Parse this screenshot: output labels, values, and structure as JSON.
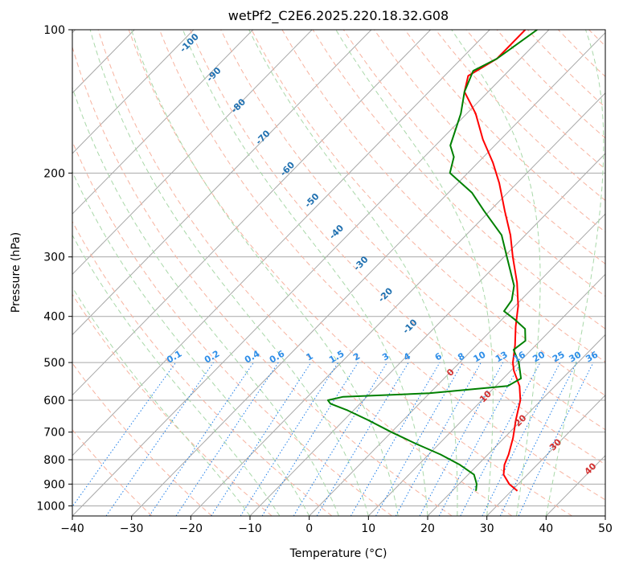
{
  "chart_data": {
    "type": "line",
    "title": "wetPf2_C2E6.2025.220.18.32.G08",
    "xlabel": "Temperature (°C)",
    "ylabel": "Pressure (hPa)",
    "xlim": [
      -40,
      50
    ],
    "ylim": [
      1050,
      100
    ],
    "yscale": "log",
    "skew": "skew-T log-p",
    "grid": true,
    "x_ticks": [
      -40,
      -30,
      -20,
      -10,
      0,
      10,
      20,
      30,
      40,
      50
    ],
    "y_ticks": [
      100,
      200,
      300,
      400,
      500,
      600,
      700,
      800,
      900,
      1000
    ],
    "series": [
      {
        "role": "temperature",
        "color": "#ff0000",
        "points": [
          {
            "p": 930,
            "t": 31
          },
          {
            "p": 900,
            "t": 28.5
          },
          {
            "p": 860,
            "t": 26
          },
          {
            "p": 820,
            "t": 24.5
          },
          {
            "p": 780,
            "t": 23.5
          },
          {
            "p": 720,
            "t": 21.5
          },
          {
            "p": 660,
            "t": 19
          },
          {
            "p": 600,
            "t": 16.5
          },
          {
            "p": 560,
            "t": 14
          },
          {
            "p": 520,
            "t": 10.5
          },
          {
            "p": 500,
            "t": 9
          },
          {
            "p": 460,
            "t": 6.5
          },
          {
            "p": 420,
            "t": 3.5
          },
          {
            "p": 380,
            "t": 0.5
          },
          {
            "p": 340,
            "t": -3.5
          },
          {
            "p": 300,
            "t": -8.5
          },
          {
            "p": 270,
            "t": -12.5
          },
          {
            "p": 240,
            "t": -17.5
          },
          {
            "p": 210,
            "t": -23
          },
          {
            "p": 190,
            "t": -27.5
          },
          {
            "p": 170,
            "t": -33
          },
          {
            "p": 150,
            "t": -38.5
          },
          {
            "p": 135,
            "t": -44
          },
          {
            "p": 125,
            "t": -46
          },
          {
            "p": 115,
            "t": -44
          },
          {
            "p": 100,
            "t": -44
          }
        ]
      },
      {
        "role": "dewpoint",
        "color": "#008000",
        "points": [
          {
            "p": 930,
            "t": 24
          },
          {
            "p": 900,
            "t": 23
          },
          {
            "p": 860,
            "t": 21
          },
          {
            "p": 820,
            "t": 17
          },
          {
            "p": 780,
            "t": 12
          },
          {
            "p": 740,
            "t": 6
          },
          {
            "p": 700,
            "t": 0
          },
          {
            "p": 660,
            "t": -6
          },
          {
            "p": 630,
            "t": -11
          },
          {
            "p": 610,
            "t": -15
          },
          {
            "p": 600,
            "t": -16
          },
          {
            "p": 590,
            "t": -14
          },
          {
            "p": 580,
            "t": 0
          },
          {
            "p": 560,
            "t": 12
          },
          {
            "p": 540,
            "t": 13
          },
          {
            "p": 500,
            "t": 10
          },
          {
            "p": 470,
            "t": 7
          },
          {
            "p": 450,
            "t": 7.5
          },
          {
            "p": 425,
            "t": 5.5
          },
          {
            "p": 405,
            "t": 2
          },
          {
            "p": 390,
            "t": -1
          },
          {
            "p": 370,
            "t": -1.5
          },
          {
            "p": 345,
            "t": -3.5
          },
          {
            "p": 300,
            "t": -9.5
          },
          {
            "p": 270,
            "t": -14
          },
          {
            "p": 240,
            "t": -21
          },
          {
            "p": 220,
            "t": -26
          },
          {
            "p": 200,
            "t": -33
          },
          {
            "p": 185,
            "t": -35
          },
          {
            "p": 175,
            "t": -37.5
          },
          {
            "p": 150,
            "t": -41
          },
          {
            "p": 135,
            "t": -44
          },
          {
            "p": 122,
            "t": -46
          },
          {
            "p": 115,
            "t": -44
          },
          {
            "p": 100,
            "t": -42
          }
        ]
      }
    ],
    "annotations": {
      "mixing_ratio_labels": [
        "0.1",
        "0.2",
        "0.4",
        "0.6",
        "1",
        "1.5",
        "2",
        "3",
        "4",
        "6",
        "8",
        "10",
        "13",
        "16",
        "20",
        "25",
        "30",
        "36"
      ],
      "moist_adiabat_labels": [
        "-100",
        "-90",
        "-80",
        "-70",
        "-60",
        "-50",
        "-40",
        "-30",
        "-20",
        "-10"
      ],
      "dry_adiabat_labels": [
        "0",
        "10",
        "20",
        "30",
        "40"
      ]
    },
    "colors": {
      "isotherm": "#a8a8a8",
      "isobar": "#a8a8a8",
      "dry_adiabat": "#f7b3a0",
      "moist_adiabat": "#a9d8a9",
      "mixing_ratio": "#1e7ee8",
      "mixing_label": "#2e8ee8",
      "moist_label": "#1f70b0",
      "dry_label": "#d23030"
    }
  }
}
